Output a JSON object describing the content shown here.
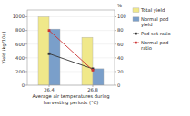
{
  "chart_data": {
    "type": "bar",
    "xlabel": "Average air temperatures during\nharvesting periods (°C)",
    "ylabel": "Yield (kg/10a)",
    "y2label": "%",
    "categories": [
      "26.4",
      "26.8"
    ],
    "series": [
      {
        "name": "Total yield",
        "color": "#f0e88a",
        "values": [
          1000,
          700
        ]
      },
      {
        "name": "Normal pod\nyield",
        "color": "#7a9fca",
        "values": [
          820,
          240
        ]
      },
      {
        "name": "Pod set ratio",
        "color": "#333333",
        "values": [
          46,
          24
        ],
        "type": "line",
        "axis": "y2",
        "marker": "square"
      },
      {
        "name": "Normal pod\nratio",
        "color": "#cc3333",
        "values": [
          80,
          22
        ],
        "type": "line",
        "axis": "y2",
        "marker": "square"
      }
    ],
    "ylim": [
      0,
      1100
    ],
    "yticks": [
      0,
      200,
      400,
      600,
      800,
      1000
    ],
    "y2lim": [
      0,
      110
    ],
    "y2ticks": [
      0,
      20,
      40,
      60,
      80,
      100
    ],
    "legend": "right"
  }
}
